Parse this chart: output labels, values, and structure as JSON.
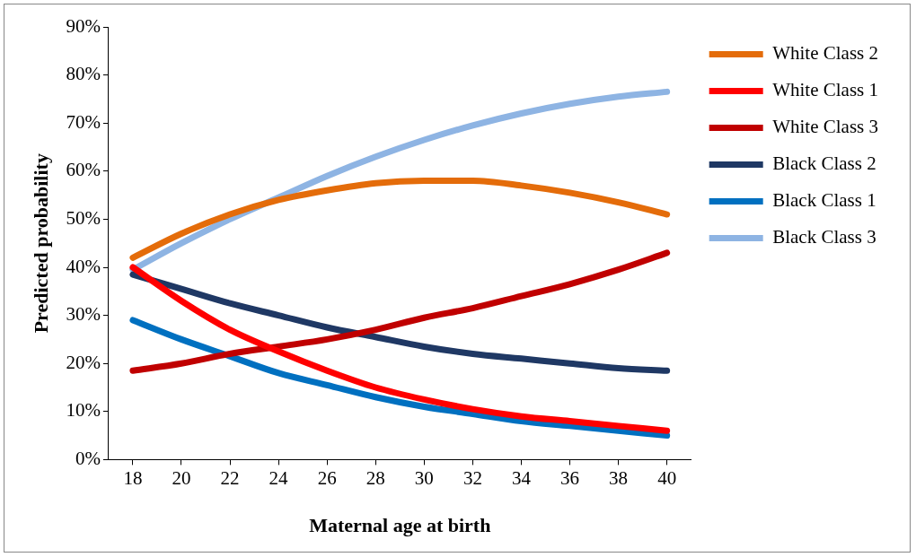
{
  "chart_data": {
    "type": "line",
    "xlabel": "Maternal age at birth",
    "ylabel": "Predicted probability",
    "x": [
      18,
      20,
      22,
      24,
      26,
      28,
      30,
      32,
      34,
      36,
      38,
      40
    ],
    "xlim": [
      17,
      41
    ],
    "xticks": [
      18,
      20,
      22,
      24,
      26,
      28,
      30,
      32,
      34,
      36,
      38,
      40
    ],
    "ylim": [
      0,
      90
    ],
    "yticks": [
      {
        "value": 0,
        "label": "0%"
      },
      {
        "value": 10,
        "label": "10%"
      },
      {
        "value": 20,
        "label": "20%"
      },
      {
        "value": 30,
        "label": "30%"
      },
      {
        "value": 40,
        "label": "40%"
      },
      {
        "value": 50,
        "label": "50%"
      },
      {
        "value": 60,
        "label": "60%"
      },
      {
        "value": 70,
        "label": "70%"
      },
      {
        "value": 80,
        "label": "80%"
      },
      {
        "value": 90,
        "label": "90%"
      }
    ],
    "grid": false,
    "legend": "right",
    "marker": "none",
    "line_style": "solid",
    "series": [
      {
        "name": "White Class 2",
        "color": "#e46c0a",
        "values": [
          42,
          47,
          51,
          54,
          56,
          57.5,
          58,
          58,
          57,
          55.5,
          53.5,
          51
        ]
      },
      {
        "name": "White Class 1",
        "color": "#ff0000",
        "values": [
          40,
          33,
          27,
          22.5,
          18.5,
          15,
          12.5,
          10.5,
          9,
          8,
          7,
          6
        ]
      },
      {
        "name": "White Class 3",
        "color": "#c00000",
        "values": [
          18.5,
          20,
          22,
          23.5,
          25,
          27,
          29.5,
          31.5,
          34,
          36.5,
          39.5,
          43
        ]
      },
      {
        "name": "Black Class 2",
        "color": "#1f3864",
        "values": [
          38.5,
          35.5,
          32.5,
          30,
          27.5,
          25.5,
          23.5,
          22,
          21,
          20,
          19,
          18.5
        ]
      },
      {
        "name": "Black Class 1",
        "color": "#0070c0",
        "values": [
          29,
          25,
          21.5,
          18,
          15.5,
          13,
          11,
          9.5,
          8,
          7,
          6,
          5
        ]
      },
      {
        "name": "Black Class 3",
        "color": "#8eb4e3",
        "values": [
          39.5,
          45,
          50,
          54.5,
          59,
          63,
          66.5,
          69.5,
          72,
          74,
          75.5,
          76.5
        ]
      }
    ]
  }
}
